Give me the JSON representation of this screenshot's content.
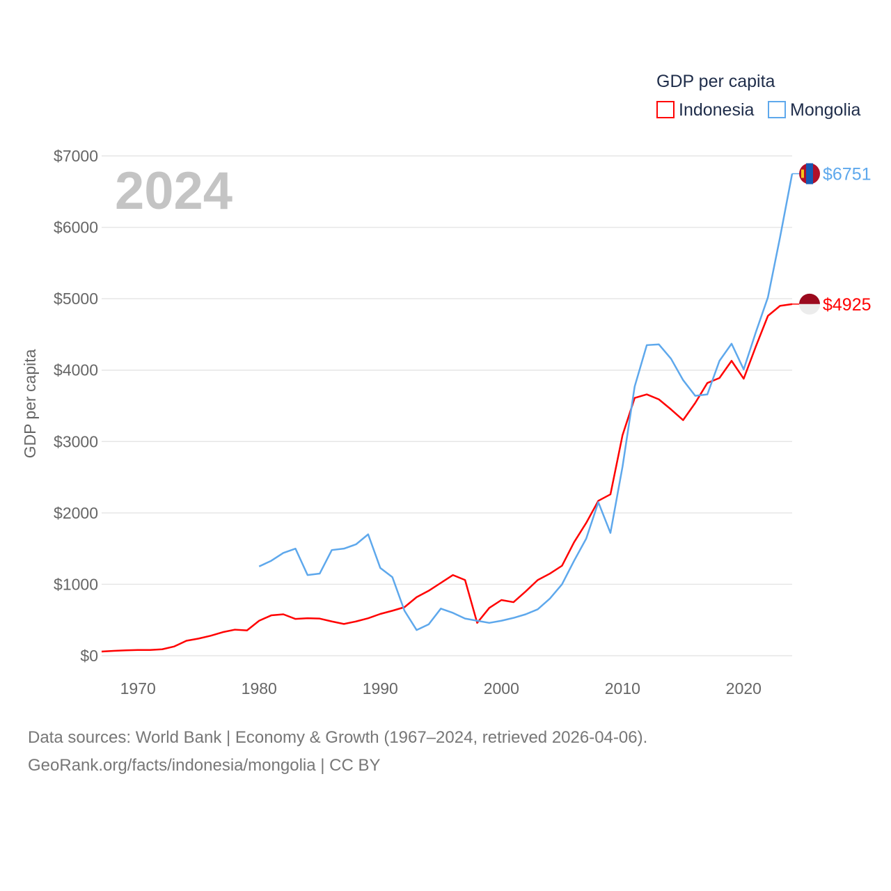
{
  "chart_data": {
    "type": "line",
    "title": "2024",
    "ylabel": "GDP per capita",
    "xlabel": "",
    "ylim": [
      0,
      7000
    ],
    "xlim": [
      1967,
      2024
    ],
    "yticks": [
      "$0",
      "$1000",
      "$2000",
      "$3000",
      "$4000",
      "$5000",
      "$6000",
      "$7000"
    ],
    "ytick_values": [
      0,
      1000,
      2000,
      3000,
      4000,
      5000,
      6000,
      7000
    ],
    "xticks": [
      "1970",
      "1980",
      "1990",
      "2000",
      "2010",
      "2020"
    ],
    "xtick_values": [
      1970,
      1980,
      1990,
      2000,
      2010,
      2020
    ],
    "grid": true,
    "legend": {
      "title": "GDP per capita",
      "placement": "top-right"
    },
    "series": [
      {
        "name": "Indonesia",
        "color": "#ff0000",
        "end_label": "$4925",
        "start": 1967,
        "values": [
          58,
          68,
          75,
          80,
          80,
          90,
          130,
          210,
          240,
          280,
          330,
          365,
          355,
          490,
          565,
          580,
          515,
          525,
          520,
          480,
          445,
          480,
          525,
          585,
          630,
          680,
          820,
          910,
          1020,
          1130,
          1060,
          460,
          670,
          780,
          750,
          900,
          1060,
          1150,
          1260,
          1590,
          1860,
          2170,
          2260,
          3090,
          3610,
          3660,
          3590,
          3450,
          3300,
          3540,
          3820,
          3890,
          4130,
          3880,
          4330,
          4760,
          4900,
          4925
        ]
      },
      {
        "name": "Mongolia",
        "color": "#5ea8ec",
        "end_label": "$6751",
        "start": 1980,
        "values": [
          1250,
          1330,
          1440,
          1500,
          1130,
          1150,
          1480,
          1500,
          1560,
          1700,
          1230,
          1100,
          630,
          360,
          440,
          660,
          600,
          520,
          490,
          460,
          490,
          530,
          580,
          650,
          800,
          1000,
          1330,
          1640,
          2150,
          1720,
          2650,
          3770,
          4350,
          4360,
          4160,
          3860,
          3640,
          3660,
          4130,
          4370,
          4010,
          4530,
          5020,
          5860,
          6751
        ]
      }
    ]
  },
  "footer": {
    "line1": "Data sources: World Bank | Economy & Growth (1967–2024, retrieved 2026-04-06).",
    "line2": "GeoRank.org/facts/indonesia/mongolia | CC BY"
  }
}
